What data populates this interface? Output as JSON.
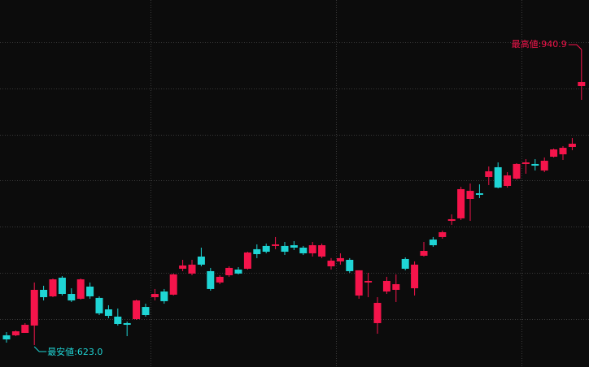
{
  "chart_data": {
    "type": "candlestick",
    "up_color": "#f5144b",
    "down_color": "#1fd5d5",
    "ylim": [
      599.4,
      994.2
    ],
    "series": {
      "open": [
        633.5,
        633.5,
        636.1,
        644.0,
        682.4,
        675.4,
        695.5,
        678.0,
        672.8,
        685.9,
        673.7,
        661.4,
        653.6,
        646.6,
        650.9,
        664.0,
        674.5,
        680.6,
        677.2,
        705.1,
        699.9,
        718.2,
        702.5,
        690.3,
        698.1,
        704.2,
        705.1,
        726.1,
        729.6,
        729.6,
        729.6,
        730.4,
        727.8,
        721.7,
        718.2,
        707.7,
        713.0,
        714.7,
        676.3,
        690.3,
        646.6,
        680.6,
        682.4,
        715.6,
        684.1,
        719.1,
        736.5,
        739.2,
        756.6,
        759.3,
        780.2,
        786.3,
        803.8,
        814.3,
        794.2,
        802.0,
        817.8,
        817.8,
        810.8,
        825.6,
        828.2,
        836.1,
        901.6
      ],
      "high": [
        637.0,
        638.7,
        646.6,
        690.3,
        686.8,
        694.6,
        697.2,
        684.1,
        694.6,
        690.3,
        675.4,
        665.8,
        662.3,
        648.3,
        671.9,
        667.5,
        683.3,
        683.3,
        699.9,
        714.7,
        714.7,
        727.8,
        706.0,
        698.1,
        707.7,
        706.8,
        723.4,
        731.3,
        732.2,
        739.2,
        733.9,
        734.8,
        729.6,
        733.9,
        732.2,
        716.5,
        721.7,
        716.5,
        703.4,
        700.7,
        674.5,
        696.4,
        699.0,
        717.3,
        713.0,
        733.9,
        739.2,
        746.1,
        763.6,
        793.3,
        796.8,
        795.9,
        815.1,
        819.5,
        809.0,
        818.6,
        823.0,
        823.0,
        824.8,
        834.4,
        837.0,
        845.7,
        940.9
      ],
      "low": [
        625.6,
        632.6,
        636.1,
        623.0,
        671.0,
        674.5,
        676.3,
        669.3,
        671.9,
        672.8,
        655.3,
        651.8,
        644.0,
        632.6,
        650.1,
        653.6,
        671.0,
        667.5,
        676.3,
        702.5,
        698.1,
        707.7,
        681.5,
        688.5,
        696.4,
        699.0,
        704.2,
        716.5,
        721.7,
        726.1,
        719.9,
        725.2,
        719.9,
        718.2,
        716.5,
        704.2,
        709.5,
        700.7,
        672.8,
        674.5,
        635.2,
        678.0,
        669.3,
        703.4,
        676.3,
        718.2,
        728.7,
        737.4,
        752.3,
        757.5,
        756.6,
        781.1,
        795.1,
        791.6,
        792.4,
        801.2,
        807.3,
        810.8,
        809.0,
        824.8,
        822.1,
        832.6,
        886.8
      ],
      "close": [
        629.1,
        637.8,
        644.8,
        682.4,
        674.5,
        693.7,
        678.0,
        671.0,
        693.7,
        675.4,
        657.1,
        654.4,
        645.7,
        644.8,
        671.0,
        655.3,
        678.0,
        670.2,
        699.0,
        708.6,
        709.5,
        709.5,
        683.3,
        696.4,
        706.0,
        699.9,
        722.6,
        720.8,
        723.4,
        731.3,
        723.4,
        727.8,
        721.7,
        730.4,
        730.4,
        713.8,
        716.5,
        702.5,
        703.4,
        692.0,
        668.4,
        692.0,
        688.5,
        705.1,
        709.5,
        724.3,
        730.4,
        744.4,
        758.4,
        790.7,
        788.9,
        784.6,
        809.9,
        792.4,
        805.5,
        817.8,
        819.5,
        816.0,
        821.3,
        833.5,
        835.2,
        839.6,
        906.0
      ]
    },
    "annotations": {
      "high": "最高値:940.9",
      "low": "最安値:623.0"
    }
  }
}
